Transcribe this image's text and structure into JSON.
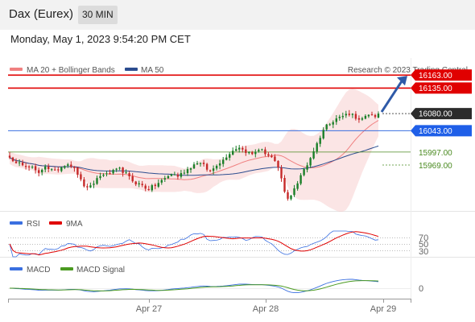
{
  "header": {
    "symbol": "Dax (Eurex)",
    "timeframe": "30 MIN"
  },
  "datetime": "Monday, May 1, 2023 9:54:20 PM CET",
  "legend": {
    "ma_bb_label": "MA 20 + Bollinger Bands",
    "ma_bb_color": "#f08080",
    "ma50_label": "MA 50",
    "ma50_color": "#2c4d8f"
  },
  "watermark": "Research © 2023 Trading Central",
  "colors": {
    "up": "#1a7f28",
    "down": "#c62828",
    "resistance": "#e00000",
    "pivot": "#3a6fe0",
    "support": "#4a8a20",
    "arrow": "#2f5aa8"
  },
  "chart_data": {
    "type": "candlestick",
    "x_tick_labels": [
      "Apr 27",
      "Apr 28",
      "Apr 29"
    ],
    "ylim": [
      15870,
      16200
    ],
    "candle_count": 115,
    "close_path": [
      15988,
      15975,
      15970,
      15978,
      15972,
      15968,
      15962,
      15965,
      15955,
      15950,
      15960,
      15968,
      15962,
      15958,
      15955,
      15960,
      15965,
      15970,
      15972,
      15968,
      15960,
      15950,
      15935,
      15925,
      15918,
      15922,
      15930,
      15940,
      15945,
      15950,
      15948,
      15952,
      15955,
      15958,
      15960,
      15955,
      15950,
      15942,
      15935,
      15930,
      15928,
      15925,
      15920,
      15918,
      15922,
      15925,
      15930,
      15935,
      15940,
      15945,
      15950,
      15948,
      15945,
      15950,
      15955,
      15960,
      15965,
      15970,
      15975,
      15972,
      15968,
      15960,
      15955,
      15962,
      15970,
      15975,
      15980,
      15988,
      15995,
      16000,
      16005,
      16008,
      16002,
      15998,
      15995,
      15992,
      15998,
      16003,
      16000,
      15995,
      15990,
      15985,
      15975,
      15960,
      15940,
      15910,
      15895,
      15905,
      15920,
      15930,
      15945,
      15960,
      15970,
      15985,
      16000,
      16015,
      16030,
      16045,
      16055,
      16060,
      16065,
      16070,
      16072,
      16075,
      16078,
      16080,
      16078,
      16072,
      16065,
      16068,
      16072,
      16076,
      16078,
      16075,
      16080
    ],
    "levels": [
      {
        "value": 16163.0,
        "label": "16163.00",
        "kind": "resistance"
      },
      {
        "value": 16135.0,
        "label": "16135.00",
        "kind": "resistance"
      },
      {
        "value": 16080.0,
        "label": "16080.00",
        "kind": "last"
      },
      {
        "value": 16043.0,
        "label": "16043.00",
        "kind": "pivot"
      },
      {
        "value": 15997.0,
        "label": "15997.00",
        "kind": "support"
      },
      {
        "value": 15969.0,
        "label": "15969.00",
        "kind": "support"
      }
    ],
    "rsi": {
      "labels": [
        "RSI",
        "9MA"
      ],
      "levels": [
        "70",
        "50",
        "30"
      ],
      "ylim": [
        0,
        100
      ]
    },
    "macd": {
      "labels": [
        "MACD",
        "MACD Signal"
      ],
      "levels": [
        "0"
      ]
    }
  }
}
